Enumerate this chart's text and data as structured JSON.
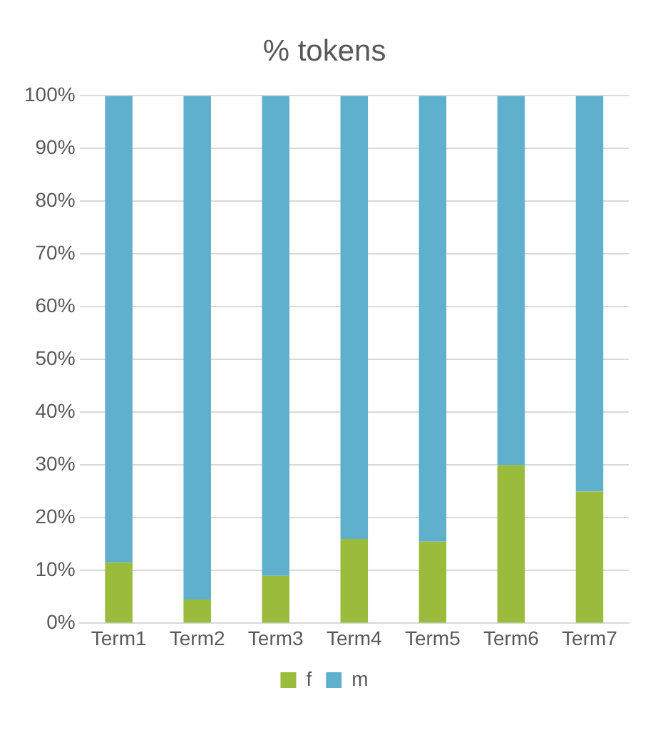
{
  "chart_data": {
    "type": "bar",
    "title": "% tokens",
    "categories": [
      "Term1",
      "Term2",
      "Term3",
      "Term4",
      "Term5",
      "Term6",
      "Term7"
    ],
    "stacked": true,
    "series": [
      {
        "name": "f",
        "color": "#9bbb3c",
        "values": [
          11.5,
          4.5,
          9,
          16,
          15.5,
          30,
          25
        ]
      },
      {
        "name": "m",
        "color": "#5fb0cc",
        "values": [
          88.5,
          95.5,
          91,
          84,
          84.5,
          70,
          75
        ]
      }
    ],
    "ylim": [
      0,
      100
    ],
    "yticks": [
      {
        "value": 0,
        "label": "0%"
      },
      {
        "value": 10,
        "label": "10%"
      },
      {
        "value": 20,
        "label": "20%"
      },
      {
        "value": 30,
        "label": "30%"
      },
      {
        "value": 40,
        "label": "40%"
      },
      {
        "value": 50,
        "label": "50%"
      },
      {
        "value": 60,
        "label": "60%"
      },
      {
        "value": 70,
        "label": "70%"
      },
      {
        "value": 80,
        "label": "80%"
      },
      {
        "value": 90,
        "label": "90%"
      },
      {
        "value": 100,
        "label": "100%"
      }
    ],
    "grid": "y",
    "legend": "bottom"
  }
}
